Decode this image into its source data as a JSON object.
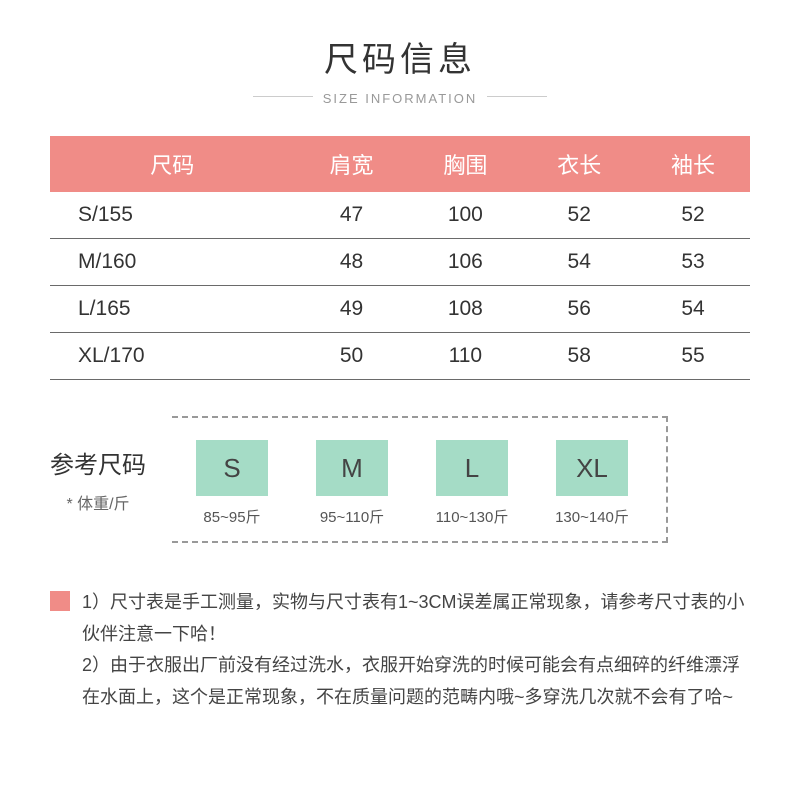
{
  "header": {
    "title": "尺码信息",
    "subtitle": "SIZE INFORMATION"
  },
  "table": {
    "columns": [
      "尺码",
      "肩宽",
      "胸围",
      "衣长",
      "袖长"
    ],
    "rows": [
      [
        "S/155",
        "47",
        "100",
        "52",
        "52"
      ],
      [
        "M/160",
        "48",
        "106",
        "54",
        "53"
      ],
      [
        "L/165",
        "49",
        "108",
        "56",
        "54"
      ],
      [
        "XL/170",
        "50",
        "110",
        "58",
        "55"
      ]
    ],
    "header_bg": "#f08c87",
    "header_color": "#ffffff",
    "border_color": "#6a6a6a",
    "font_size": 21
  },
  "reference": {
    "title": "参考尺码",
    "sub": "* 体重/斤",
    "items": [
      {
        "label": "S",
        "weight": "85~95斤"
      },
      {
        "label": "M",
        "weight": "95~110斤"
      },
      {
        "label": "L",
        "weight": "110~130斤"
      },
      {
        "label": "XL",
        "weight": "130~140斤"
      }
    ],
    "badge_bg": "#a5dcc6",
    "dashed_border": "#999999"
  },
  "notes": {
    "marker_color": "#f08c87",
    "line1": "1）尺寸表是手工测量，实物与尺寸表有1~3CM误差属正常现象，请参考尺寸表的小伙伴注意一下哈！",
    "line2": "2）由于衣服出厂前没有经过洗水，衣服开始穿洗的时候可能会有点细碎的纤维漂浮在水面上，这个是正常现象，不在质量问题的范畴内哦~多穿洗几次就不会有了哈~"
  },
  "colors": {
    "background": "#ffffff",
    "text": "#333333",
    "muted": "#999999"
  }
}
